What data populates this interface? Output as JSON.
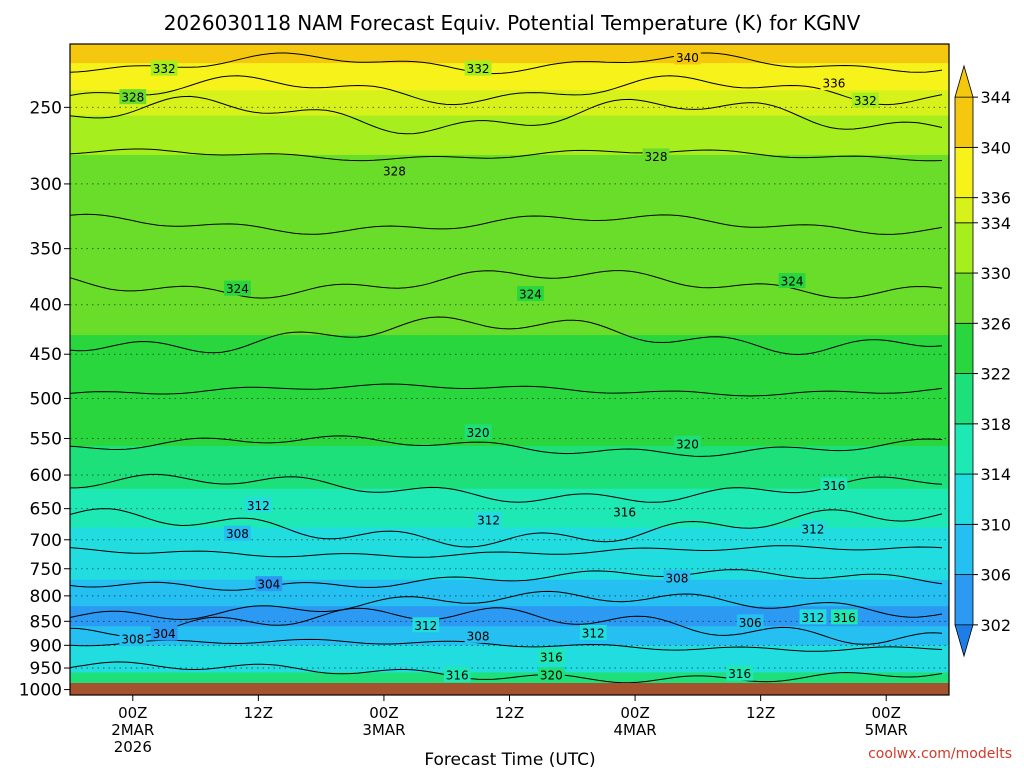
{
  "chart_data": {
    "type": "heatmap",
    "title": "2026030118 NAM Forecast Equiv. Potential Temperature (K) for KGNV",
    "xlabel": "Forecast Time (UTC)",
    "ylabel": "",
    "credit": "coolwx.com/modelts",
    "y_ticks": [
      250,
      300,
      350,
      400,
      450,
      500,
      550,
      600,
      650,
      700,
      750,
      800,
      850,
      900,
      950,
      1000
    ],
    "ylim": [
      1013,
      215
    ],
    "y_scale": "log",
    "x_tick_hours": [
      0,
      12,
      24,
      36,
      48,
      60,
      72
    ],
    "x_tick_labels": [
      [
        "00Z",
        "2MAR",
        "2026"
      ],
      [
        "12Z"
      ],
      [
        "00Z",
        "3MAR"
      ],
      [
        "12Z"
      ],
      [
        "00Z",
        "4MAR"
      ],
      [
        "12Z"
      ],
      [
        "00Z",
        "5MAR"
      ]
    ],
    "xlim": [
      -6,
      78
    ],
    "grid": true,
    "colorbar": {
      "levels": [
        302,
        306,
        310,
        314,
        318,
        322,
        326,
        330,
        334,
        336,
        340,
        344
      ],
      "min": 300,
      "max": 346,
      "colors": [
        "#1e7ee8",
        "#2c9af2",
        "#26bff2",
        "#22dde0",
        "#1ee8b4",
        "#1ee07a",
        "#2ad63e",
        "#6add2a",
        "#a6ee1e",
        "#d6f21a",
        "#f6f21a",
        "#f5c80f"
      ]
    },
    "theta_e": [
      {
        "p": 215,
        "k": 345
      },
      {
        "p": 225,
        "k": 338
      },
      {
        "p": 240,
        "k": 334
      },
      {
        "p": 255,
        "k": 331
      },
      {
        "p": 280,
        "k": 329
      },
      {
        "p": 330,
        "k": 328
      },
      {
        "p": 380,
        "k": 326
      },
      {
        "p": 430,
        "k": 324
      },
      {
        "p": 490,
        "k": 322
      },
      {
        "p": 560,
        "k": 319
      },
      {
        "p": 620,
        "k": 316
      },
      {
        "p": 680,
        "k": 313
      },
      {
        "p": 720,
        "k": 310
      },
      {
        "p": 770,
        "k": 307
      },
      {
        "p": 820,
        "k": 305
      },
      {
        "p": 860,
        "k": 306
      },
      {
        "p": 900,
        "k": 310
      },
      {
        "p": 960,
        "k": 318
      },
      {
        "p": 1013,
        "k": 322
      }
    ],
    "contour_labels": [
      {
        "text": "332",
        "hour": 3,
        "p": 228
      },
      {
        "text": "332",
        "hour": 33,
        "p": 228
      },
      {
        "text": "340",
        "hour": 53,
        "p": 222
      },
      {
        "text": "336",
        "hour": 67,
        "p": 236
      },
      {
        "text": "332",
        "hour": 70,
        "p": 246
      },
      {
        "text": "328",
        "hour": 0,
        "p": 244
      },
      {
        "text": "328",
        "hour": 25,
        "p": 291
      },
      {
        "text": "328",
        "hour": 50,
        "p": 281
      },
      {
        "text": "324",
        "hour": 10,
        "p": 385
      },
      {
        "text": "324",
        "hour": 38,
        "p": 390
      },
      {
        "text": "324",
        "hour": 63,
        "p": 378
      },
      {
        "text": "320",
        "hour": 33,
        "p": 542
      },
      {
        "text": "320",
        "hour": 53,
        "p": 557
      },
      {
        "text": "316",
        "hour": 67,
        "p": 615
      },
      {
        "text": "316",
        "hour": 47,
        "p": 655
      },
      {
        "text": "312",
        "hour": 12,
        "p": 645
      },
      {
        "text": "312",
        "hour": 34,
        "p": 668
      },
      {
        "text": "312",
        "hour": 65,
        "p": 682
      },
      {
        "text": "308",
        "hour": 10,
        "p": 690
      },
      {
        "text": "308",
        "hour": 52,
        "p": 767
      },
      {
        "text": "304",
        "hour": 13,
        "p": 778
      },
      {
        "text": "304",
        "hour": 3,
        "p": 875
      },
      {
        "text": "308",
        "hour": 0,
        "p": 887
      },
      {
        "text": "312",
        "hour": 28,
        "p": 858
      },
      {
        "text": "308",
        "hour": 33,
        "p": 880
      },
      {
        "text": "312",
        "hour": 44,
        "p": 874
      },
      {
        "text": "306",
        "hour": 59,
        "p": 852
      },
      {
        "text": "312",
        "hour": 65,
        "p": 842
      },
      {
        "text": "316",
        "hour": 68,
        "p": 842
      },
      {
        "text": "316",
        "hour": 40,
        "p": 925
      },
      {
        "text": "320",
        "hour": 40,
        "p": 966
      },
      {
        "text": "316",
        "hour": 31,
        "p": 966
      },
      {
        "text": "316",
        "hour": 58,
        "p": 963
      }
    ]
  }
}
